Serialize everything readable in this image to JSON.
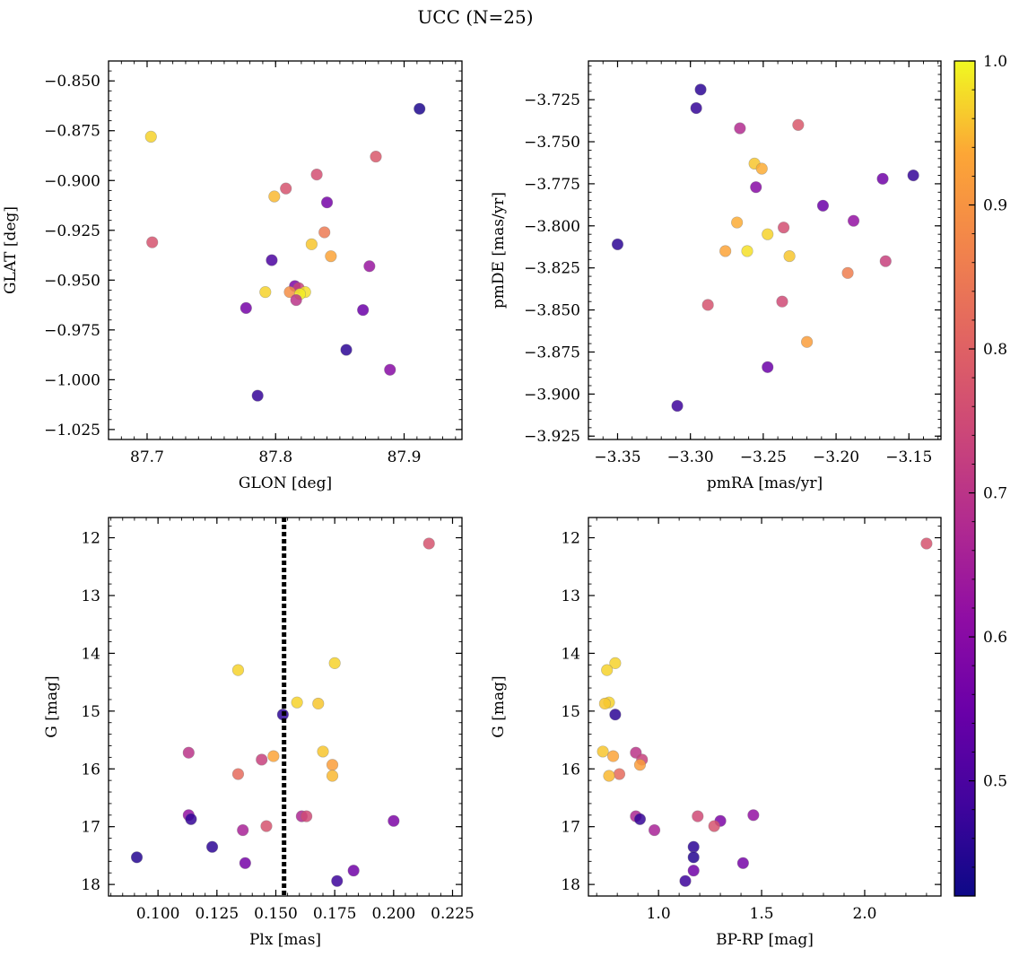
{
  "figure": {
    "title": "UCC (N=25)"
  },
  "colorbar": {
    "range": [
      0.42,
      1.0
    ],
    "ticks": [
      0.5,
      0.6,
      0.7,
      0.8,
      0.9,
      1.0
    ],
    "tick_labels": [
      "0.5",
      "0.6",
      "0.7",
      "0.8",
      "0.9",
      "1.0"
    ],
    "colormap": "plasma"
  },
  "chart_data": [
    {
      "type": "scatter",
      "xlabel": "GLON [deg]",
      "ylabel": "GLAT [deg]",
      "xlim": [
        87.67,
        87.945
      ],
      "ylim": [
        -1.03,
        -0.84
      ],
      "x_ticks": [
        87.7,
        87.8,
        87.9
      ],
      "x_tick_labels": [
        "87.7",
        "87.8",
        "87.9"
      ],
      "y_ticks": [
        -0.85,
        -0.875,
        -0.9,
        -0.925,
        -0.95,
        -0.975,
        -1.0,
        -1.025
      ],
      "y_tick_labels": [
        "−0.850",
        "−0.875",
        "−0.900",
        "−0.925",
        "−0.950",
        "−0.975",
        "−1.000",
        "−1.025"
      ],
      "x_minor": 0.01,
      "y_minor": 0.005,
      "points": [
        {
          "x": 87.912,
          "y": -0.864,
          "c": 0.44
        },
        {
          "x": 87.703,
          "y": -0.878,
          "c": 0.97
        },
        {
          "x": 87.878,
          "y": -0.888,
          "c": 0.78
        },
        {
          "x": 87.832,
          "y": -0.897,
          "c": 0.76
        },
        {
          "x": 87.808,
          "y": -0.904,
          "c": 0.77
        },
        {
          "x": 87.799,
          "y": -0.908,
          "c": 0.95
        },
        {
          "x": 87.84,
          "y": -0.911,
          "c": 0.57
        },
        {
          "x": 87.838,
          "y": -0.926,
          "c": 0.85
        },
        {
          "x": 87.704,
          "y": -0.931,
          "c": 0.77
        },
        {
          "x": 87.828,
          "y": -0.932,
          "c": 0.96
        },
        {
          "x": 87.843,
          "y": -0.938,
          "c": 0.93
        },
        {
          "x": 87.797,
          "y": -0.94,
          "c": 0.5
        },
        {
          "x": 87.873,
          "y": -0.943,
          "c": 0.63
        },
        {
          "x": 87.815,
          "y": -0.953,
          "c": 0.58
        },
        {
          "x": 87.818,
          "y": -0.954,
          "c": 0.73
        },
        {
          "x": 87.811,
          "y": -0.956,
          "c": 0.89
        },
        {
          "x": 87.792,
          "y": -0.956,
          "c": 0.97
        },
        {
          "x": 87.823,
          "y": -0.956,
          "c": 0.98
        },
        {
          "x": 87.819,
          "y": -0.957,
          "c": 0.99
        },
        {
          "x": 87.816,
          "y": -0.96,
          "c": 0.7
        },
        {
          "x": 87.777,
          "y": -0.964,
          "c": 0.57
        },
        {
          "x": 87.868,
          "y": -0.965,
          "c": 0.55
        },
        {
          "x": 87.855,
          "y": -0.985,
          "c": 0.46
        },
        {
          "x": 87.889,
          "y": -0.995,
          "c": 0.6
        },
        {
          "x": 87.786,
          "y": -1.008,
          "c": 0.47
        }
      ]
    },
    {
      "type": "scatter",
      "xlabel": "pmRA [mas/yr]",
      "ylabel": "pmDE [mas/yr]",
      "xlim": [
        -3.37,
        -3.128
      ],
      "ylim": [
        -3.927,
        -3.702
      ],
      "x_ticks": [
        -3.35,
        -3.3,
        -3.25,
        -3.2,
        -3.15
      ],
      "x_tick_labels": [
        "−3.35",
        "−3.30",
        "−3.25",
        "−3.20",
        "−3.15"
      ],
      "y_ticks": [
        -3.725,
        -3.75,
        -3.775,
        -3.8,
        -3.825,
        -3.85,
        -3.875,
        -3.9,
        -3.925
      ],
      "y_tick_labels": [
        "−3.725",
        "−3.750",
        "−3.775",
        "−3.800",
        "−3.825",
        "−3.850",
        "−3.875",
        "−3.900",
        "−3.925"
      ],
      "x_minor": 0.01,
      "y_minor": 0.005,
      "points": [
        {
          "x": -3.293,
          "y": -3.719,
          "c": 0.46
        },
        {
          "x": -3.296,
          "y": -3.73,
          "c": 0.47
        },
        {
          "x": -3.266,
          "y": -3.742,
          "c": 0.68
        },
        {
          "x": -3.226,
          "y": -3.74,
          "c": 0.78
        },
        {
          "x": -3.256,
          "y": -3.763,
          "c": 0.96
        },
        {
          "x": -3.251,
          "y": -3.766,
          "c": 0.94
        },
        {
          "x": -3.147,
          "y": -3.77,
          "c": 0.47
        },
        {
          "x": -3.168,
          "y": -3.772,
          "c": 0.56
        },
        {
          "x": -3.255,
          "y": -3.777,
          "c": 0.6
        },
        {
          "x": -3.209,
          "y": -3.788,
          "c": 0.55
        },
        {
          "x": -3.188,
          "y": -3.797,
          "c": 0.62
        },
        {
          "x": -3.268,
          "y": -3.798,
          "c": 0.94
        },
        {
          "x": -3.236,
          "y": -3.801,
          "c": 0.76
        },
        {
          "x": -3.247,
          "y": -3.805,
          "c": 0.97
        },
        {
          "x": -3.35,
          "y": -3.811,
          "c": 0.46
        },
        {
          "x": -3.276,
          "y": -3.815,
          "c": 0.93
        },
        {
          "x": -3.261,
          "y": -3.815,
          "c": 0.98
        },
        {
          "x": -3.232,
          "y": -3.818,
          "c": 0.96
        },
        {
          "x": -3.166,
          "y": -3.821,
          "c": 0.73
        },
        {
          "x": -3.192,
          "y": -3.828,
          "c": 0.86
        },
        {
          "x": -3.237,
          "y": -3.845,
          "c": 0.75
        },
        {
          "x": -3.288,
          "y": -3.847,
          "c": 0.77
        },
        {
          "x": -3.22,
          "y": -3.869,
          "c": 0.92
        },
        {
          "x": -3.247,
          "y": -3.884,
          "c": 0.55
        },
        {
          "x": -3.309,
          "y": -3.907,
          "c": 0.48
        }
      ]
    },
    {
      "type": "scatter",
      "xlabel": "Plx [mas]",
      "ylabel": "G [mag]",
      "xlim": [
        0.079,
        0.229
      ],
      "ylim": [
        18.2,
        11.65
      ],
      "x_ticks": [
        0.1,
        0.125,
        0.15,
        0.175,
        0.2,
        0.225
      ],
      "x_tick_labels": [
        "0.100",
        "0.125",
        "0.150",
        "0.175",
        "0.200",
        "0.225"
      ],
      "y_ticks": [
        12,
        13,
        14,
        15,
        16,
        17,
        18
      ],
      "y_tick_labels": [
        "12",
        "13",
        "14",
        "15",
        "16",
        "17",
        "18"
      ],
      "x_minor": 0.005,
      "y_minor": 0.2,
      "vline": 0.1535,
      "points": [
        {
          "x": 0.215,
          "y": 12.1,
          "c": 0.77
        },
        {
          "x": 0.175,
          "y": 14.17,
          "c": 0.97
        },
        {
          "x": 0.134,
          "y": 14.29,
          "c": 0.97
        },
        {
          "x": 0.159,
          "y": 14.85,
          "c": 0.97
        },
        {
          "x": 0.168,
          "y": 14.87,
          "c": 0.96
        },
        {
          "x": 0.153,
          "y": 15.06,
          "c": 0.46
        },
        {
          "x": 0.113,
          "y": 15.72,
          "c": 0.7
        },
        {
          "x": 0.17,
          "y": 15.7,
          "c": 0.96
        },
        {
          "x": 0.149,
          "y": 15.78,
          "c": 0.93
        },
        {
          "x": 0.144,
          "y": 15.84,
          "c": 0.73
        },
        {
          "x": 0.174,
          "y": 15.93,
          "c": 0.92
        },
        {
          "x": 0.134,
          "y": 16.09,
          "c": 0.82
        },
        {
          "x": 0.174,
          "y": 16.12,
          "c": 0.95
        },
        {
          "x": 0.113,
          "y": 16.8,
          "c": 0.62
        },
        {
          "x": 0.161,
          "y": 16.82,
          "c": 0.67
        },
        {
          "x": 0.163,
          "y": 16.82,
          "c": 0.75
        },
        {
          "x": 0.114,
          "y": 16.87,
          "c": 0.47
        },
        {
          "x": 0.2,
          "y": 16.9,
          "c": 0.58
        },
        {
          "x": 0.146,
          "y": 16.99,
          "c": 0.77
        },
        {
          "x": 0.136,
          "y": 17.06,
          "c": 0.66
        },
        {
          "x": 0.123,
          "y": 17.35,
          "c": 0.46
        },
        {
          "x": 0.091,
          "y": 17.53,
          "c": 0.45
        },
        {
          "x": 0.137,
          "y": 17.63,
          "c": 0.57
        },
        {
          "x": 0.183,
          "y": 17.76,
          "c": 0.56
        },
        {
          "x": 0.176,
          "y": 17.94,
          "c": 0.48
        }
      ]
    },
    {
      "type": "scatter",
      "xlabel": "BP-RP [mag]",
      "ylabel": "G [mag]",
      "xlim": [
        0.66,
        2.37
      ],
      "ylim": [
        18.2,
        11.65
      ],
      "x_ticks": [
        1.0,
        1.5,
        2.0
      ],
      "x_tick_labels": [
        "1.0",
        "1.5",
        "2.0"
      ],
      "y_ticks": [
        12,
        13,
        14,
        15,
        16,
        17,
        18
      ],
      "y_tick_labels": [
        "12",
        "13",
        "14",
        "15",
        "16",
        "17",
        "18"
      ],
      "x_minor": 0.1,
      "y_minor": 0.2,
      "points": [
        {
          "x": 2.3,
          "y": 12.1,
          "c": 0.77
        },
        {
          "x": 0.79,
          "y": 14.17,
          "c": 0.97
        },
        {
          "x": 0.75,
          "y": 14.29,
          "c": 0.97
        },
        {
          "x": 0.76,
          "y": 14.85,
          "c": 0.97
        },
        {
          "x": 0.74,
          "y": 14.87,
          "c": 0.96
        },
        {
          "x": 0.79,
          "y": 15.06,
          "c": 0.46
        },
        {
          "x": 0.73,
          "y": 15.7,
          "c": 0.96
        },
        {
          "x": 0.89,
          "y": 15.72,
          "c": 0.7
        },
        {
          "x": 0.78,
          "y": 15.78,
          "c": 0.93
        },
        {
          "x": 0.92,
          "y": 15.84,
          "c": 0.73
        },
        {
          "x": 0.91,
          "y": 15.93,
          "c": 0.92
        },
        {
          "x": 0.81,
          "y": 16.09,
          "c": 0.82
        },
        {
          "x": 0.76,
          "y": 16.12,
          "c": 0.95
        },
        {
          "x": 1.46,
          "y": 16.8,
          "c": 0.62
        },
        {
          "x": 0.89,
          "y": 16.82,
          "c": 0.67
        },
        {
          "x": 1.19,
          "y": 16.82,
          "c": 0.75
        },
        {
          "x": 0.91,
          "y": 16.87,
          "c": 0.47
        },
        {
          "x": 1.3,
          "y": 16.9,
          "c": 0.58
        },
        {
          "x": 1.27,
          "y": 16.99,
          "c": 0.77
        },
        {
          "x": 0.98,
          "y": 17.06,
          "c": 0.66
        },
        {
          "x": 1.17,
          "y": 17.35,
          "c": 0.46
        },
        {
          "x": 1.17,
          "y": 17.53,
          "c": 0.45
        },
        {
          "x": 1.41,
          "y": 17.63,
          "c": 0.57
        },
        {
          "x": 1.17,
          "y": 17.76,
          "c": 0.56
        },
        {
          "x": 1.13,
          "y": 17.94,
          "c": 0.48
        }
      ]
    }
  ]
}
